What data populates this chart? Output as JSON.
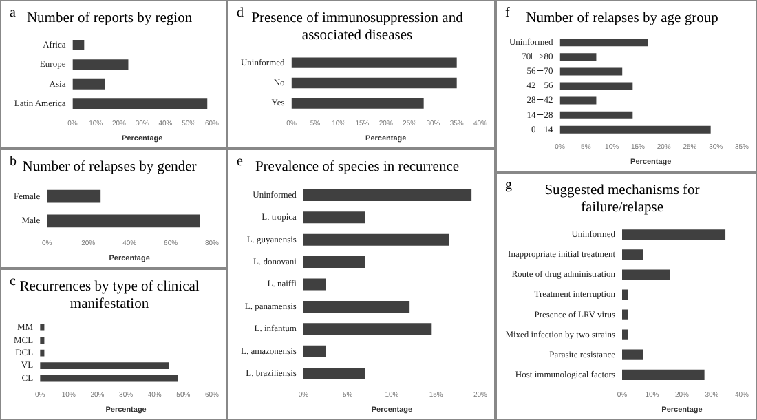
{
  "chart_data": [
    {
      "type": "bar",
      "orientation": "horizontal",
      "title": "Number of reports by region",
      "annotations": [
        "a"
      ],
      "xlabel": "Percentage",
      "categories": [
        "Africa",
        "Europe",
        "Asia",
        "Latin America"
      ],
      "values": [
        5,
        24,
        14,
        58
      ],
      "color": "#404040",
      "xlim": [
        0,
        60
      ],
      "xticks": [
        {
          "value": 0,
          "label": "0%"
        },
        {
          "value": 10,
          "label": "10%"
        },
        {
          "value": 20,
          "label": "20%"
        },
        {
          "value": 30,
          "label": "30%"
        },
        {
          "value": 40,
          "label": "40%"
        },
        {
          "value": 50,
          "label": "50%"
        },
        {
          "value": 60,
          "label": "60%"
        }
      ],
      "grid": false,
      "legend": false
    },
    {
      "type": "bar",
      "orientation": "horizontal",
      "title": "Number of relapses by gender",
      "annotations": [
        "b"
      ],
      "xlabel": "Percentage",
      "categories": [
        "Female",
        "Male"
      ],
      "values": [
        26,
        74
      ],
      "color": "#404040",
      "xlim": [
        0,
        80
      ],
      "xticks": [
        {
          "value": 0,
          "label": "0%"
        },
        {
          "value": 20,
          "label": "20%"
        },
        {
          "value": 40,
          "label": "40%"
        },
        {
          "value": 60,
          "label": "60%"
        },
        {
          "value": 80,
          "label": "80%"
        }
      ],
      "grid": false,
      "legend": false
    },
    {
      "type": "bar",
      "orientation": "horizontal",
      "title": "Recurrences by type of clinical manifestation",
      "annotations": [
        "c"
      ],
      "xlabel": "Percentage",
      "categories": [
        "MM",
        "MCL",
        "DCL",
        "VL",
        "CL"
      ],
      "values": [
        1.5,
        1.5,
        1.5,
        45,
        48
      ],
      "color": "#404040",
      "xlim": [
        0,
        60
      ],
      "xticks": [
        {
          "value": 0,
          "label": "0%"
        },
        {
          "value": 10,
          "label": "10%"
        },
        {
          "value": 20,
          "label": "20%"
        },
        {
          "value": 30,
          "label": "30%"
        },
        {
          "value": 40,
          "label": "40%"
        },
        {
          "value": 50,
          "label": "50%"
        },
        {
          "value": 60,
          "label": "60%"
        }
      ],
      "grid": false,
      "legend": false
    },
    {
      "type": "bar",
      "orientation": "horizontal",
      "title": "Presence of immunosuppression and associated diseases",
      "annotations": [
        "d"
      ],
      "xlabel": "Percentage",
      "categories": [
        "Uninformed",
        "No",
        "Yes"
      ],
      "values": [
        35,
        35,
        28
      ],
      "color": "#404040",
      "xlim": [
        0,
        40
      ],
      "xticks": [
        {
          "value": 0,
          "label": "0%"
        },
        {
          "value": 5,
          "label": "5%"
        },
        {
          "value": 10,
          "label": "10%"
        },
        {
          "value": 15,
          "label": "15%"
        },
        {
          "value": 20,
          "label": "20%"
        },
        {
          "value": 25,
          "label": "25%"
        },
        {
          "value": 30,
          "label": "30%"
        },
        {
          "value": 35,
          "label": "35%"
        },
        {
          "value": 40,
          "label": "40%"
        }
      ],
      "grid": false,
      "legend": false
    },
    {
      "type": "bar",
      "orientation": "horizontal",
      "title": "Prevalence of species in recurrence",
      "annotations": [
        "e"
      ],
      "xlabel": "Percentage",
      "categories": [
        "Uninformed",
        "L. tropica",
        "L. guyanensis",
        "L. donovani",
        "L. naiffi",
        "L. panamensis",
        "L. infantum",
        "L. amazonensis",
        "L. braziliensis"
      ],
      "values": [
        19,
        7,
        16.5,
        7,
        2.5,
        12,
        14.5,
        2.5,
        7
      ],
      "color": "#404040",
      "xlim": [
        0,
        20
      ],
      "xticks": [
        {
          "value": 0,
          "label": "0%"
        },
        {
          "value": 5,
          "label": "5%"
        },
        {
          "value": 10,
          "label": "10%"
        },
        {
          "value": 15,
          "label": "15%"
        },
        {
          "value": 20,
          "label": "20%"
        }
      ],
      "grid": false,
      "legend": false
    },
    {
      "type": "bar",
      "orientation": "horizontal",
      "title": "Number of relapses by age group",
      "annotations": [
        "f"
      ],
      "xlabel": "Percentage",
      "categories": [
        "Uninformed",
        "70⊢>80",
        "56⊢70",
        "42⊢56",
        "28⊢42",
        "14⊢28",
        "0⊢14"
      ],
      "values": [
        17,
        7,
        12,
        14,
        7,
        14,
        29
      ],
      "color": "#404040",
      "xlim": [
        0,
        35
      ],
      "xticks": [
        {
          "value": 0,
          "label": "0%"
        },
        {
          "value": 5,
          "label": "5%"
        },
        {
          "value": 10,
          "label": "10%"
        },
        {
          "value": 15,
          "label": "15%"
        },
        {
          "value": 20,
          "label": "20%"
        },
        {
          "value": 25,
          "label": "25%"
        },
        {
          "value": 30,
          "label": "30%"
        },
        {
          "value": 35,
          "label": "35%"
        }
      ],
      "grid": false,
      "legend": false
    },
    {
      "type": "bar",
      "orientation": "horizontal",
      "title": "Suggested mechanisms for failure/relapse",
      "annotations": [
        "g"
      ],
      "xlabel": "Percentage",
      "categories": [
        "Uninformed",
        "Inappropriate initial treatment",
        "Route of drug administration",
        "Treatment interruption",
        "Presence of LRV virus",
        "Mixed infection by two strains",
        "Parasite resistance",
        "Host immunological factors"
      ],
      "values": [
        34.5,
        7,
        16,
        2,
        2,
        2,
        7,
        27.5
      ],
      "color": "#404040",
      "xlim": [
        0,
        40
      ],
      "xticks": [
        {
          "value": 0,
          "label": "0%"
        },
        {
          "value": 10,
          "label": "10%"
        },
        {
          "value": 20,
          "label": "20%"
        },
        {
          "value": 30,
          "label": "30%"
        },
        {
          "value": 40,
          "label": "40%"
        }
      ],
      "grid": false,
      "legend": false
    }
  ]
}
